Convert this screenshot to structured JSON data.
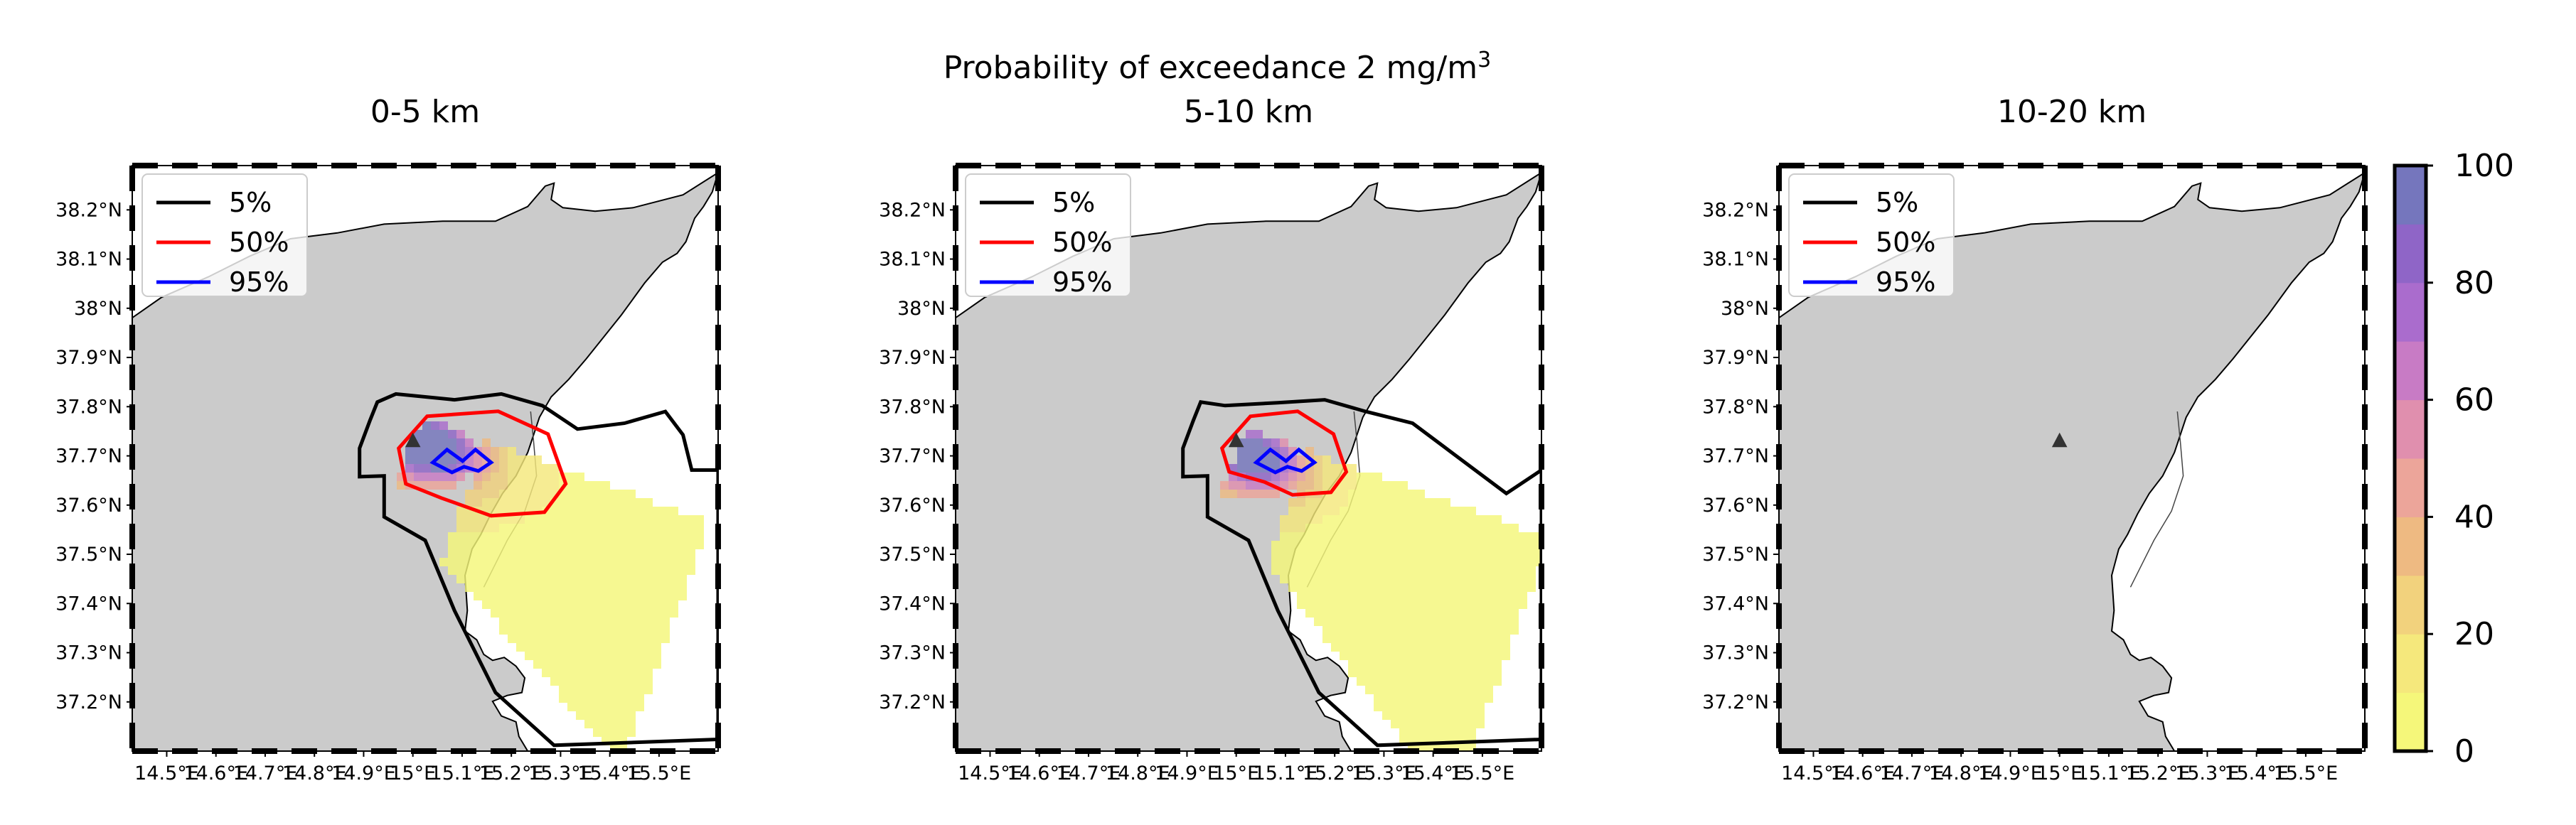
{
  "figure": {
    "suptitle": "Probability of exceedance 2 mg/m",
    "suptitle_sup": "3"
  },
  "chart_data": {
    "type": "heatmap",
    "title": "Probability of exceedance 2 mg/m³",
    "colorbar": {
      "ticks": [
        "0",
        "20",
        "40",
        "60",
        "80",
        "100"
      ],
      "range": [
        0,
        100
      ],
      "bins": 10
    },
    "x_ticks": [
      "14.5°E",
      "14.6°E",
      "14.7°E",
      "14.8°E",
      "14.9°E",
      "15°E",
      "15.1°E",
      "15.2°E",
      "15.3°E",
      "15.4°E",
      "15.5°E"
    ],
    "y_ticks": [
      "37.2°N",
      "37.3°N",
      "37.4°N",
      "37.5°N",
      "37.6°N",
      "37.7°N",
      "37.8°N",
      "37.9°N",
      "38°N",
      "38.1°N",
      "38.2°N"
    ],
    "xlim": [
      14.43,
      15.62
    ],
    "ylim": [
      37.1,
      38.29
    ],
    "legend": {
      "placement": "upper-left",
      "entries": [
        {
          "label": "5%",
          "color": "#000000"
        },
        {
          "label": "50%",
          "color": "#ff0000"
        },
        {
          "label": "95%",
          "color": "#0000ff"
        }
      ]
    },
    "vent": {
      "lon": 15.0,
      "lat": 37.73
    },
    "panels": [
      {
        "title": "0-5 km",
        "has_cloud": true
      },
      {
        "title": "5-10 km",
        "has_cloud": true
      },
      {
        "title": "10-20 km",
        "has_cloud": false
      }
    ]
  }
}
